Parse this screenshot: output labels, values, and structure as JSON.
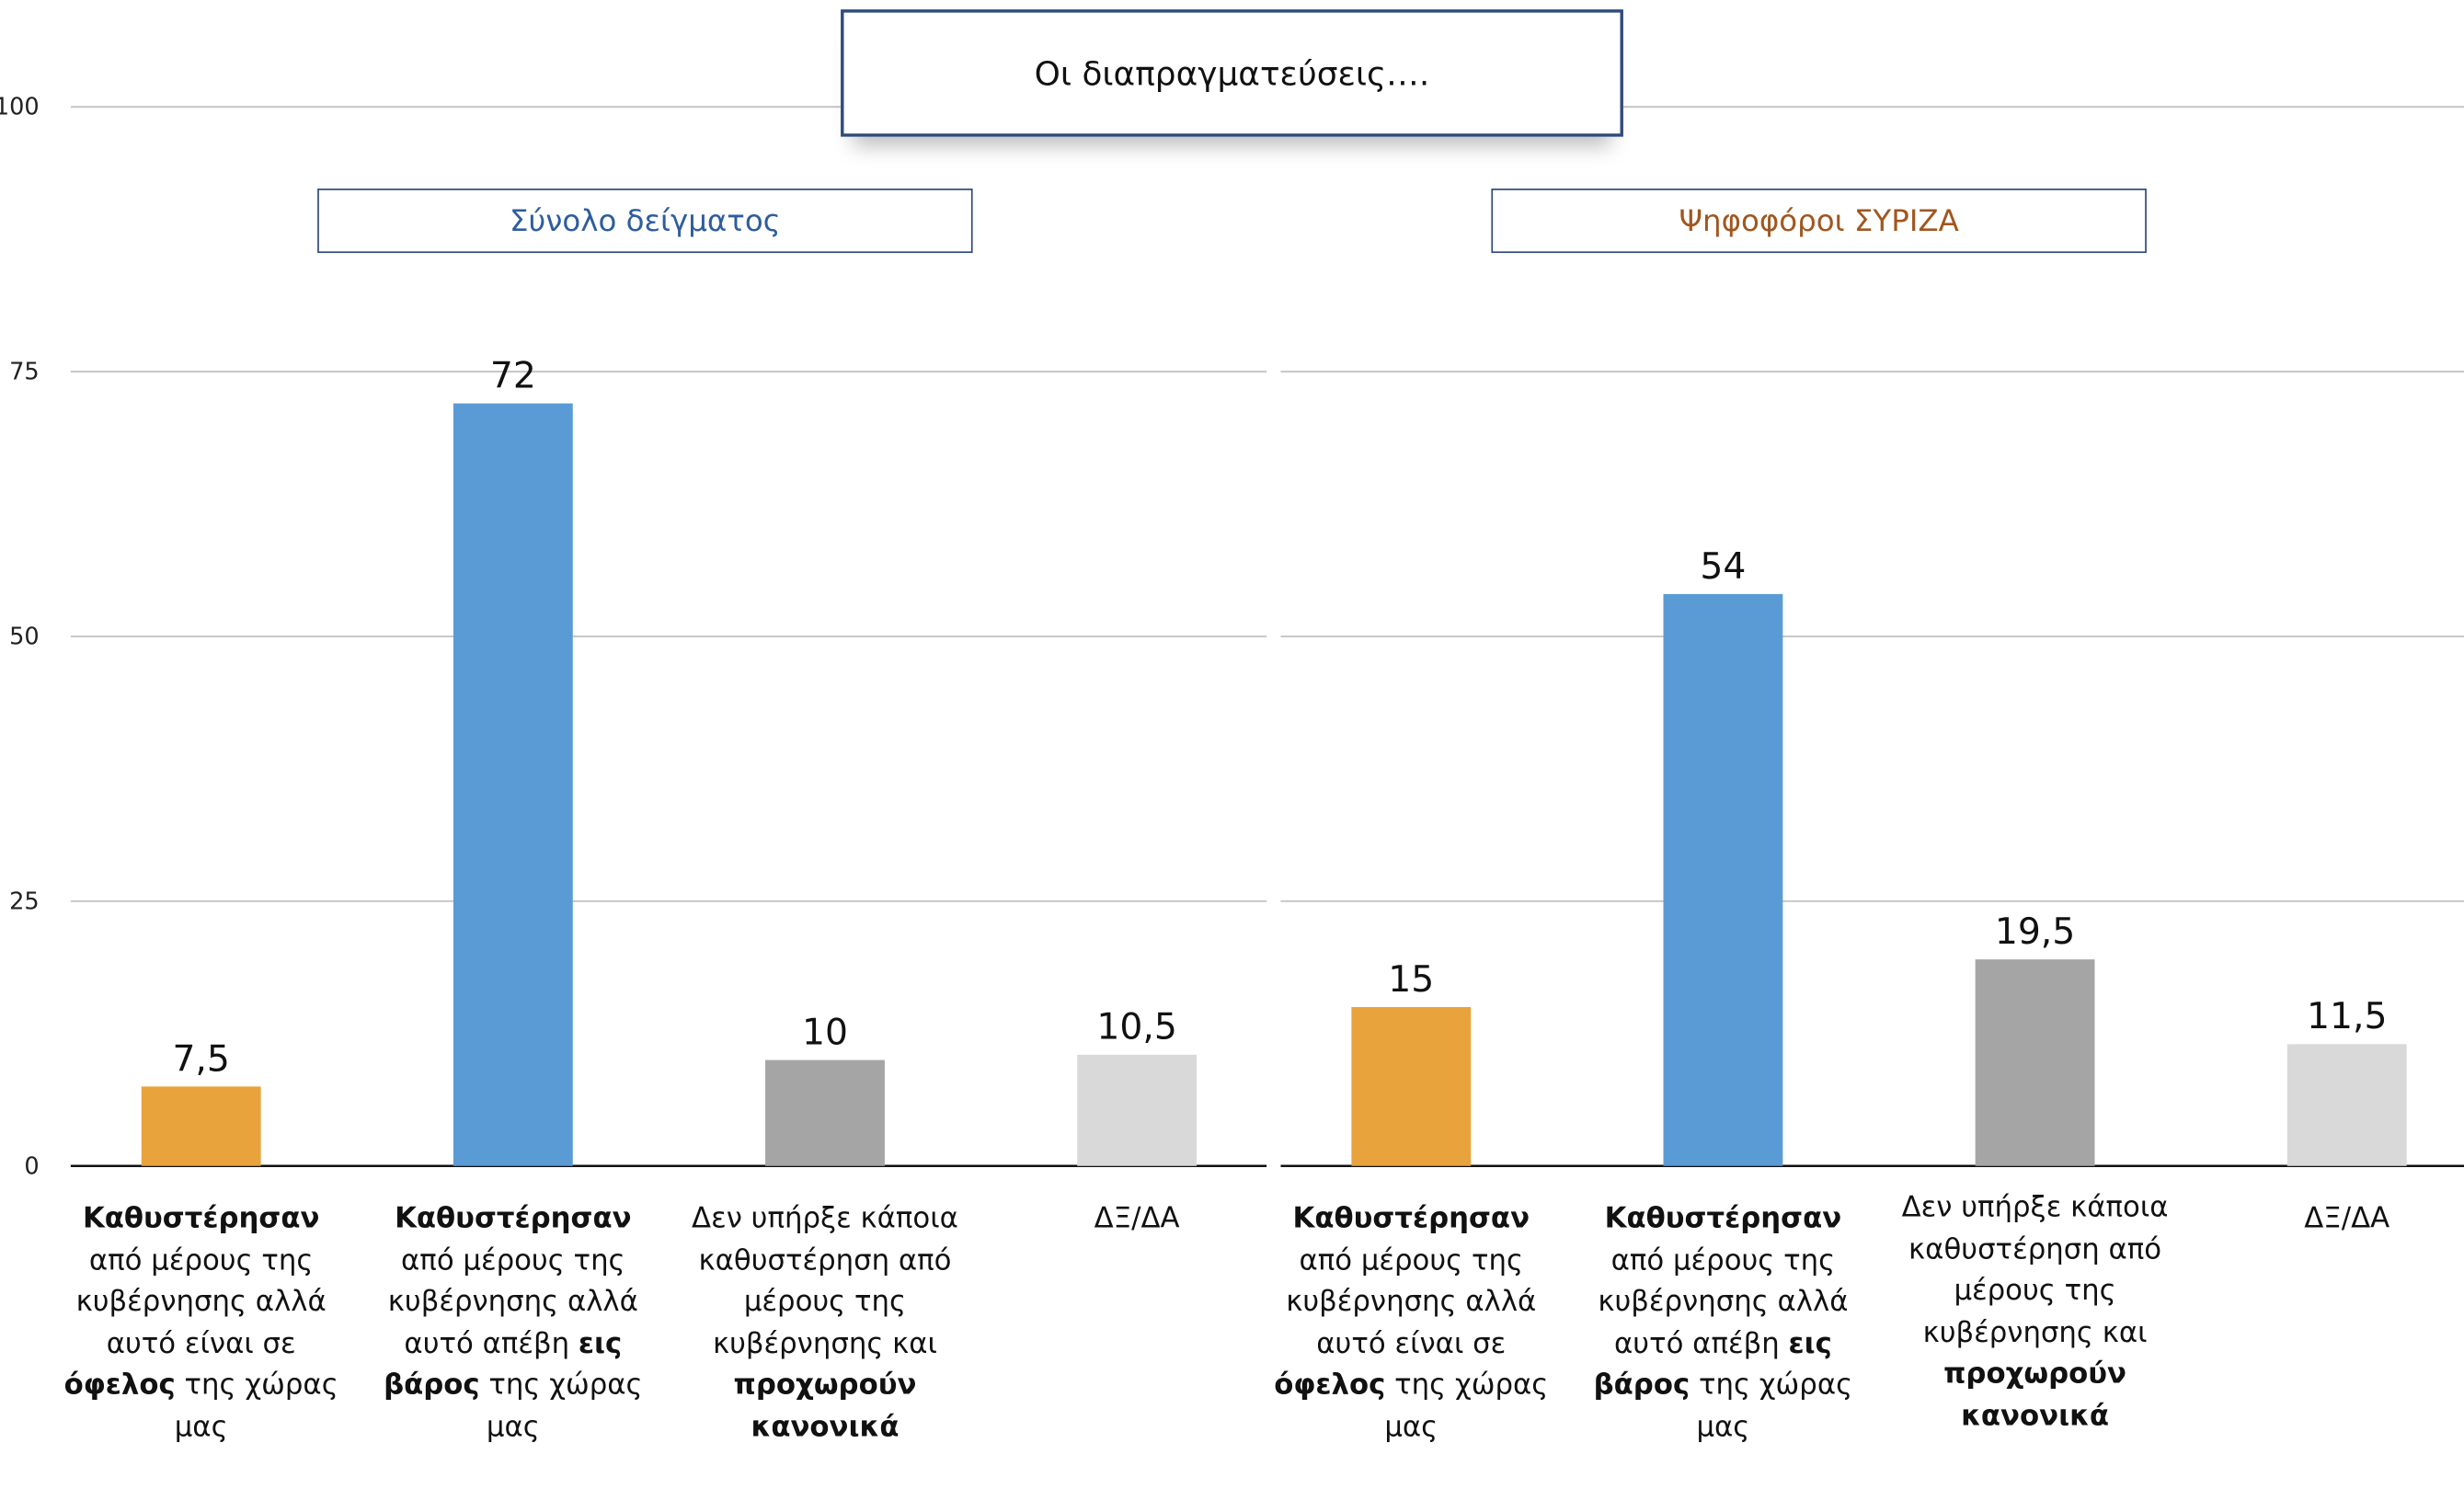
{
  "title": "Οι διαπραγματεύσεις….",
  "chart_data": [
    {
      "type": "bar",
      "subtitle": "Σύνολο δείγματος",
      "subtitle_color": "#2e5d9e",
      "categories": [
        [
          {
            "text": "Καθυστέρησαν",
            "bold": true
          },
          {
            "text": " από μέρους της κυβέρνησης αλλά αυτό είναι σε ",
            "bold": false
          },
          {
            "text": "όφελος",
            "bold": true
          },
          {
            "text": " της χώρας μας",
            "bold": false
          }
        ],
        [
          {
            "text": "Καθυστέρησαν",
            "bold": true
          },
          {
            "text": " από μέρους της κυβέρνησης αλλά αυτό απέβη ",
            "bold": false
          },
          {
            "text": "εις βάρος",
            "bold": true
          },
          {
            "text": " της χώρας μας",
            "bold": false
          }
        ],
        [
          {
            "text": "Δεν υπήρξε κάποια καθυστέρηση από μέρους της κυβέρνησης και ",
            "bold": false
          },
          {
            "text": "προχωρούν κανονικά",
            "bold": true
          }
        ],
        [
          {
            "text": "ΔΞ/ΔΑ",
            "bold": false
          }
        ]
      ],
      "values": [
        7.5,
        72,
        10,
        10.5
      ],
      "value_labels": [
        "7,5",
        "72",
        "10",
        "10,5"
      ],
      "colors": [
        "#e8a33d",
        "#5b9bd5",
        "#a5a5a5",
        "#d9d9d9"
      ],
      "ylim": [
        0,
        100
      ],
      "yticks": [
        0,
        25,
        50,
        75,
        100
      ],
      "grid": true
    },
    {
      "type": "bar",
      "subtitle": "Ψηφοφόροι ΣΥΡΙΖΑ",
      "subtitle_color": "#a0571f",
      "categories": [
        [
          {
            "text": "Καθυστέρησαν",
            "bold": true
          },
          {
            "text": " από μέρους της κυβέρνησης αλλά αυτό είναι σε ",
            "bold": false
          },
          {
            "text": "όφελος",
            "bold": true
          },
          {
            "text": " της χώρας μας",
            "bold": false
          }
        ],
        [
          {
            "text": "Καθυστέρησαν",
            "bold": true
          },
          {
            "text": " από μέρους της κυβέρνησης αλλά αυτό απέβη ",
            "bold": false
          },
          {
            "text": "εις βάρος",
            "bold": true
          },
          {
            "text": " της χώρας μας",
            "bold": false
          }
        ],
        [
          {
            "text": "Δεν υπήρξε κάποια καθυστέρηση από μέρους της κυβέρνησης και ",
            "bold": false
          },
          {
            "text": "προχωρούν κανονικά",
            "bold": true
          }
        ],
        [
          {
            "text": "ΔΞ/ΔΑ",
            "bold": false
          }
        ]
      ],
      "values": [
        15,
        54,
        19.5,
        11.5
      ],
      "value_labels": [
        "15",
        "54",
        "19,5",
        "11,5"
      ],
      "colors": [
        "#e8a33d",
        "#5b9bd5",
        "#a5a5a5",
        "#d9d9d9"
      ],
      "ylim": [
        0,
        100
      ],
      "grid": true
    }
  ]
}
